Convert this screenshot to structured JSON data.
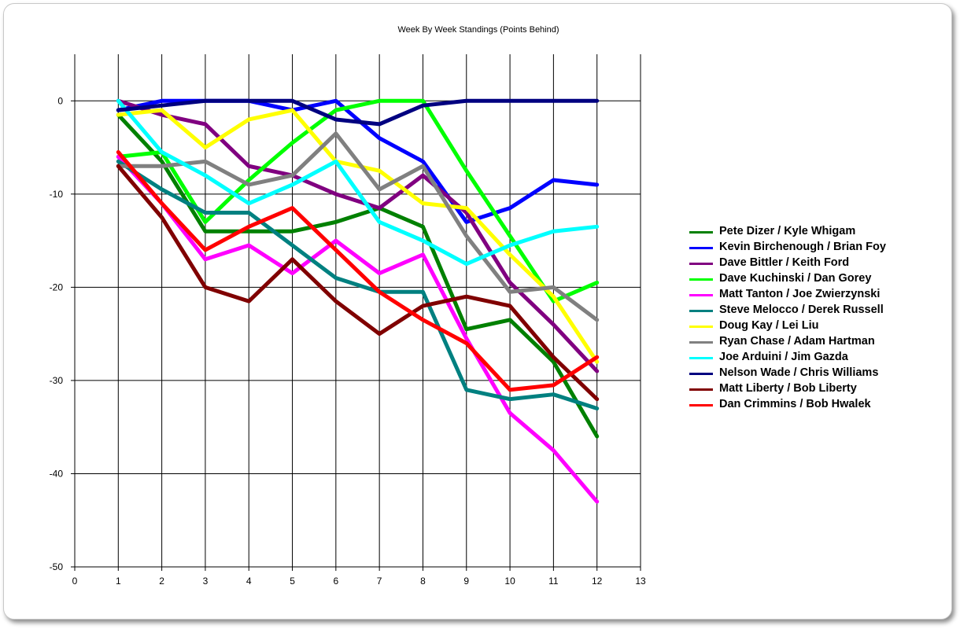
{
  "chart_data": {
    "type": "line",
    "title": "Week By Week Standings (Points Behind)",
    "xlabel": "",
    "ylabel": "",
    "xlim": [
      0,
      13
    ],
    "ylim": [
      -50,
      5
    ],
    "x_ticks": [
      0,
      1,
      2,
      3,
      4,
      5,
      6,
      7,
      8,
      9,
      10,
      11,
      12,
      13
    ],
    "y_ticks": [
      0,
      -10,
      -20,
      -30,
      -40,
      -50
    ],
    "grid": true,
    "legend_position": "right",
    "x": [
      1,
      2,
      3,
      4,
      5,
      6,
      7,
      8,
      9,
      10,
      11,
      12
    ],
    "series": [
      {
        "name": "Pete Dizer / Kyle Whigam",
        "color": "#008000",
        "values": [
          -1.5,
          -6.5,
          -14,
          -14,
          -14,
          -13,
          -11.5,
          -13.5,
          -24.5,
          -23.5,
          -28,
          -36
        ]
      },
      {
        "name": "Kevin Birchenough / Brian Foy",
        "color": "#0000ff",
        "values": [
          -1,
          0,
          0,
          0,
          -1,
          0,
          -4,
          -6.5,
          -13,
          -11.5,
          -8.5,
          -9
        ]
      },
      {
        "name": "Dave Bittler / Keith Ford",
        "color": "#800080",
        "values": [
          0,
          -1.5,
          -2.5,
          -7,
          -8,
          -10,
          -11.5,
          -8,
          -12,
          -19.5,
          -24,
          -29
        ]
      },
      {
        "name": "Dave Kuchinski / Dan Gorey",
        "color": "#00ff00",
        "values": [
          -6,
          -5.5,
          -13,
          -8.5,
          -4.5,
          -1,
          0,
          0,
          -7.5,
          -14.5,
          -21.5,
          -19.5
        ]
      },
      {
        "name": "Matt Tanton / Joe Zwierzynski",
        "color": "#ff00ff",
        "values": [
          -6,
          -11,
          -17,
          -15.5,
          -18.5,
          -15,
          -18.5,
          -16.5,
          -25.5,
          -33.5,
          -37.5,
          -43
        ]
      },
      {
        "name": "Steve Melocco / Derek Russell",
        "color": "#008080",
        "values": [
          -6.5,
          -9.5,
          -12,
          -12,
          -15.5,
          -19,
          -20.5,
          -20.5,
          -31,
          -32,
          -31.5,
          -33
        ]
      },
      {
        "name": "Doug Kay / Lei Liu",
        "color": "#ffff00",
        "values": [
          -1.5,
          -1,
          -5,
          -2,
          -1,
          -6.5,
          -7.5,
          -11,
          -11.5,
          -16.5,
          -21,
          -28
        ]
      },
      {
        "name": "Ryan Chase / Adam Hartman",
        "color": "#808080",
        "values": [
          -7,
          -7,
          -6.5,
          -9,
          -8,
          -3.5,
          -9.5,
          -7,
          -14.5,
          -20.5,
          -20,
          -23.5
        ]
      },
      {
        "name": "Joe Arduini / Jim Gazda",
        "color": "#00ffff",
        "values": [
          0,
          -5.5,
          -8,
          -11,
          -9,
          -6.5,
          -13,
          -15,
          -17.5,
          -15.5,
          -14,
          -13.5
        ]
      },
      {
        "name": "Nelson Wade / Chris Williams",
        "color": "#000080",
        "values": [
          -1,
          -0.5,
          0,
          0,
          0,
          -2,
          -2.5,
          -0.5,
          0,
          0,
          0,
          0
        ]
      },
      {
        "name": "Matt Liberty / Bob Liberty",
        "color": "#800000",
        "values": [
          -7,
          -12.5,
          -20,
          -21.5,
          -17,
          -21.5,
          -25,
          -22,
          -21,
          -22,
          -27.5,
          -32
        ]
      },
      {
        "name": "Dan Crimmins / Bob Hwalek",
        "color": "#ff0000",
        "values": [
          -5.5,
          -11,
          -16,
          -13.5,
          -11.5,
          -16,
          -20.5,
          -23.5,
          -26,
          -31,
          -30.5,
          -27.5
        ]
      }
    ]
  }
}
